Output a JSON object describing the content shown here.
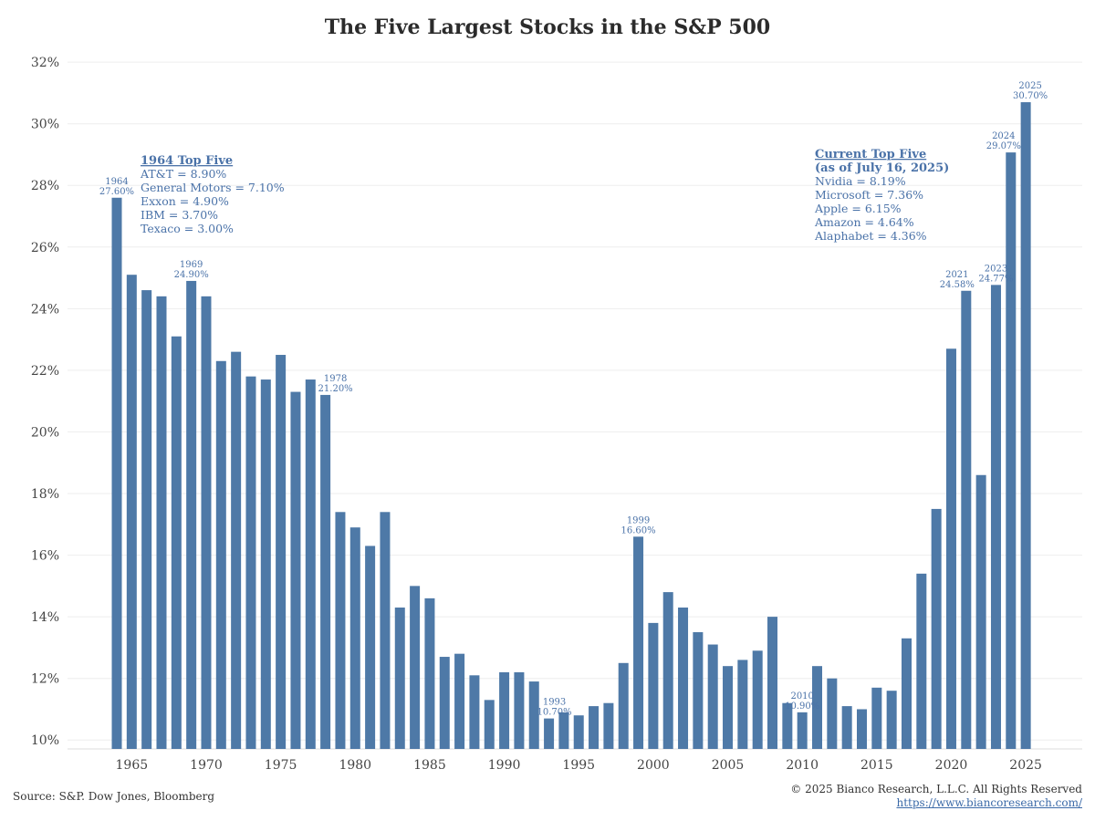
{
  "chart_data": {
    "type": "bar",
    "title": "The Five Largest Stocks in the S&P 500",
    "x": [
      1964,
      1965,
      1966,
      1967,
      1968,
      1969,
      1970,
      1971,
      1972,
      1973,
      1974,
      1975,
      1976,
      1977,
      1978,
      1979,
      1980,
      1981,
      1982,
      1983,
      1984,
      1985,
      1986,
      1987,
      1988,
      1989,
      1990,
      1991,
      1992,
      1993,
      1994,
      1995,
      1996,
      1997,
      1998,
      1999,
      2000,
      2001,
      2002,
      2003,
      2004,
      2005,
      2006,
      2007,
      2008,
      2009,
      2010,
      2011,
      2012,
      2013,
      2014,
      2015,
      2016,
      2017,
      2018,
      2019,
      2020,
      2021,
      2022,
      2023,
      2024,
      2025
    ],
    "values": [
      27.6,
      25.1,
      24.6,
      24.4,
      23.1,
      24.9,
      24.4,
      22.3,
      22.6,
      21.8,
      21.7,
      22.5,
      21.3,
      21.7,
      21.2,
      17.4,
      16.9,
      16.3,
      17.4,
      14.3,
      15.0,
      14.6,
      12.7,
      12.8,
      12.1,
      11.3,
      12.2,
      12.2,
      11.9,
      10.7,
      10.9,
      10.8,
      11.1,
      11.2,
      12.5,
      16.6,
      13.8,
      14.8,
      14.3,
      13.5,
      13.1,
      12.4,
      12.6,
      12.9,
      14.0,
      11.2,
      10.9,
      12.4,
      12.0,
      11.1,
      11.0,
      11.7,
      11.6,
      13.3,
      15.4,
      17.5,
      22.7,
      24.58,
      18.6,
      24.77,
      29.07,
      30.7
    ],
    "ylim": [
      9.8,
      32.3
    ],
    "yticks": [
      10,
      12,
      14,
      16,
      18,
      20,
      22,
      24,
      26,
      28,
      30,
      32
    ],
    "ytick_labels": [
      "10%",
      "12%",
      "14%",
      "16%",
      "18%",
      "20%",
      "22%",
      "24%",
      "26%",
      "28%",
      "30%",
      "32%"
    ],
    "xticks": [
      1965,
      1970,
      1975,
      1980,
      1985,
      1990,
      1995,
      2000,
      2005,
      2010,
      2015,
      2020,
      2025
    ],
    "xtick_labels": [
      "1965",
      "1970",
      "1975",
      "1980",
      "1985",
      "1990",
      "1995",
      "2000",
      "2005",
      "2010",
      "2015",
      "2020",
      "2025"
    ],
    "xlabel": "",
    "ylabel": "",
    "grid": true,
    "bar_color": "#4e79a7",
    "annotations": [
      {
        "year": 1964,
        "label_year": "1964",
        "label_value": "27.60%"
      },
      {
        "year": 1969,
        "label_year": "1969",
        "label_value": "24.90%"
      },
      {
        "year": 1978,
        "label_year": "1978",
        "label_value": "21.20%"
      },
      {
        "year": 1993,
        "label_year": "1993",
        "label_value": "10.70%"
      },
      {
        "year": 1999,
        "label_year": "1999",
        "label_value": "16.60%"
      },
      {
        "year": 2010,
        "label_year": "2010",
        "label_value": "10.90%"
      },
      {
        "year": 2021,
        "label_year": "2021",
        "label_value": "24.58%"
      },
      {
        "year": 2023,
        "label_year": "2023",
        "label_value": "24.77%"
      },
      {
        "year": 2024,
        "label_year": "2024",
        "label_value": "29.07%"
      },
      {
        "year": 2025,
        "label_year": "2025",
        "label_value": "30.70%"
      }
    ]
  },
  "box1964": {
    "title": "1964 Top Five",
    "lines": [
      "AT&T = 8.90%",
      "General Motors = 7.10%",
      "Exxon = 4.90%",
      "IBM = 3.70%",
      "Texaco = 3.00%"
    ]
  },
  "boxCurrent": {
    "title": "Current Top Five",
    "subtitle": "(as of July 16, 2025)",
    "lines": [
      "Nvidia = 8.19%",
      "Microsoft = 7.36%",
      "Apple = 6.15%",
      "Amazon = 4.64%",
      "Alaphabet = 4.36%"
    ]
  },
  "footer": {
    "source": "Source: S&P. Dow Jones, Bloomberg",
    "copyright": "© 2025 Bianco Research, L.L.C. All Rights Reserved",
    "url": "https://www.biancoresearch.com/"
  }
}
